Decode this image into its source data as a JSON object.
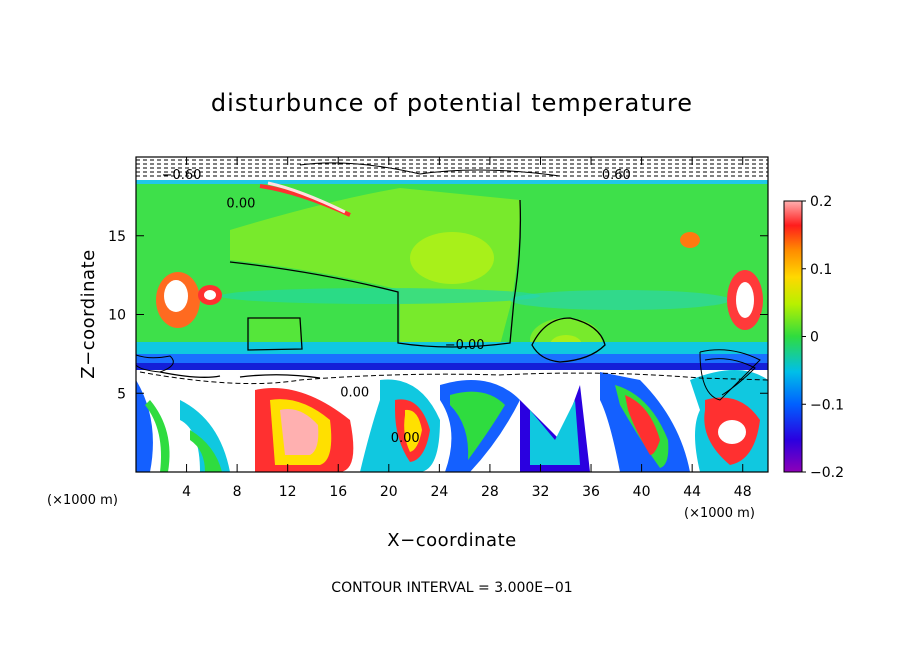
{
  "chart_data": {
    "type": "heatmap",
    "title": "disturbunce of potential temperature",
    "xlabel": "X−coordinate",
    "ylabel": "Z−coordinate",
    "x_unit": "(×1000 m)",
    "z_unit": "(×1000 m)",
    "x_ticks": [
      4,
      8,
      12,
      16,
      20,
      24,
      28,
      32,
      36,
      40,
      44,
      48
    ],
    "y_ticks": [
      5,
      10,
      15
    ],
    "xlim": [
      0,
      50
    ],
    "ylim": [
      0,
      20
    ],
    "colorbar": {
      "range": [
        -0.2,
        0.2
      ],
      "ticks": [
        "0.2",
        "0.1",
        "0",
        "−0.1",
        "−0.2"
      ],
      "tick_values": [
        0.2,
        0.1,
        0,
        -0.1,
        -0.2
      ]
    },
    "contour_labels": [
      {
        "text": "0.00",
        "x": 8.3,
        "z": 16.8
      },
      {
        "text": "0.00",
        "x": 17.3,
        "z": 4.8
      },
      {
        "text": "−0.00",
        "x": 26.0,
        "z": 7.8
      },
      {
        "text": "0.00",
        "x": 21.3,
        "z": 1.9
      },
      {
        "text": "−0.60",
        "x": 3.6,
        "z": 18.6
      },
      {
        "text": "0.60",
        "x": 38.0,
        "z": 18.6
      }
    ],
    "contour_interval": "CONTOUR INTERVAL = 3.000E−01"
  }
}
